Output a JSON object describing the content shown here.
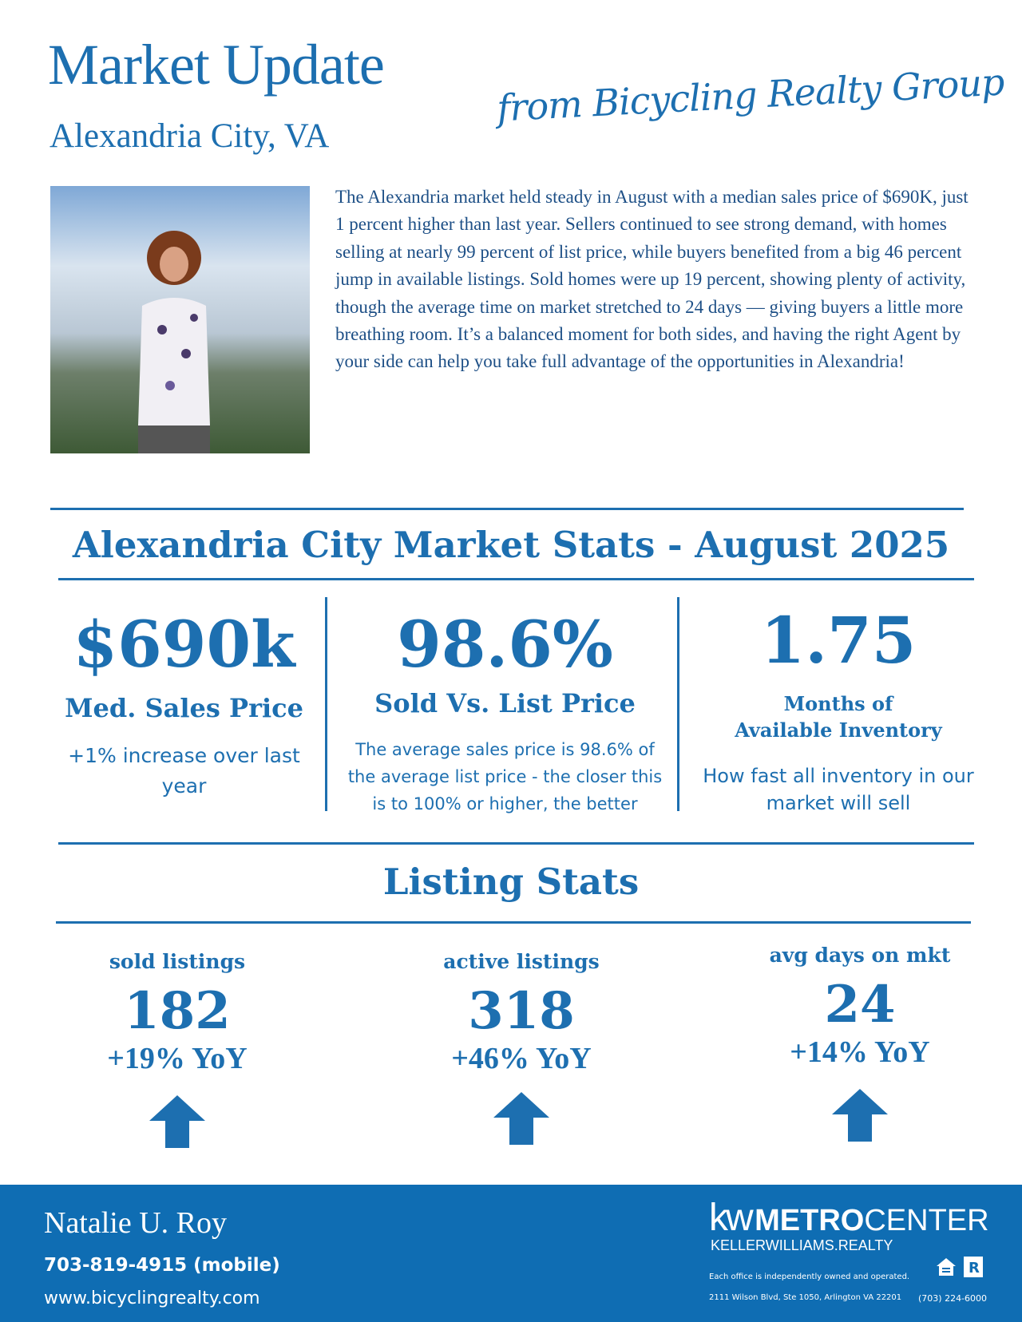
{
  "header": {
    "title": "Market Update",
    "subtitle": "Alexandria City, VA",
    "tagline": "from Bicycling Realty Group"
  },
  "intro": "The Alexandria market held steady in August with a median sales price of $690K, just 1 percent higher than last year. Sellers continued to see strong demand, with homes selling at nearly 99 percent of list price, while buyers benefited from a big 46 percent jump in available listings. Sold homes were up 19 percent, showing plenty of activity, though the average time on market stretched to 24 days — giving buyers a little more breathing room. It’s a balanced moment for both sides, and having the right Agent by your side can help you take full advantage of the opportunities in Alexandria!",
  "market": {
    "heading": "Alexandria City Market Stats - August 2025",
    "stats": [
      {
        "value": "$690k",
        "label": "Med. Sales Price",
        "desc": "+1% increase over last year"
      },
      {
        "value": "98.6%",
        "label": "Sold Vs. List Price",
        "desc": "The average sales price is 98.6% of the average list price - the closer this is to 100% or higher, the better"
      },
      {
        "value": "1.75",
        "label": "Months of Available Inventory",
        "desc": "How fast all inventory in our market will sell"
      }
    ]
  },
  "listing": {
    "heading": "Listing Stats",
    "items": [
      {
        "label": "sold listings",
        "value": "182",
        "yoy": "+19% YoY",
        "icon": "arrow-up-icon"
      },
      {
        "label": "active listings",
        "value": "318",
        "yoy": "+46% YoY",
        "icon": "arrow-up-icon"
      },
      {
        "label": "avg days on mkt",
        "value": "24",
        "yoy": "+14% YoY",
        "icon": "arrow-up-icon"
      }
    ]
  },
  "footer": {
    "name": "Natalie U. Roy",
    "phone": "703-819-4915 (mobile)",
    "website": "www.bicyclingrealty.com",
    "logo_kw": "kw",
    "logo_metro": "METRO",
    "logo_center": "CENTER",
    "logo_sub": "KELLERWILLIAMS.REALTY",
    "disclaimer": "Each office is independently owned and operated.",
    "address": "2111 Wilson Blvd, Ste 1050, Arlington VA 22201",
    "office_phone": "(703) 224-6000"
  },
  "colors": {
    "brand": "#1d6fb0",
    "footer_bg": "#0f6db3"
  }
}
